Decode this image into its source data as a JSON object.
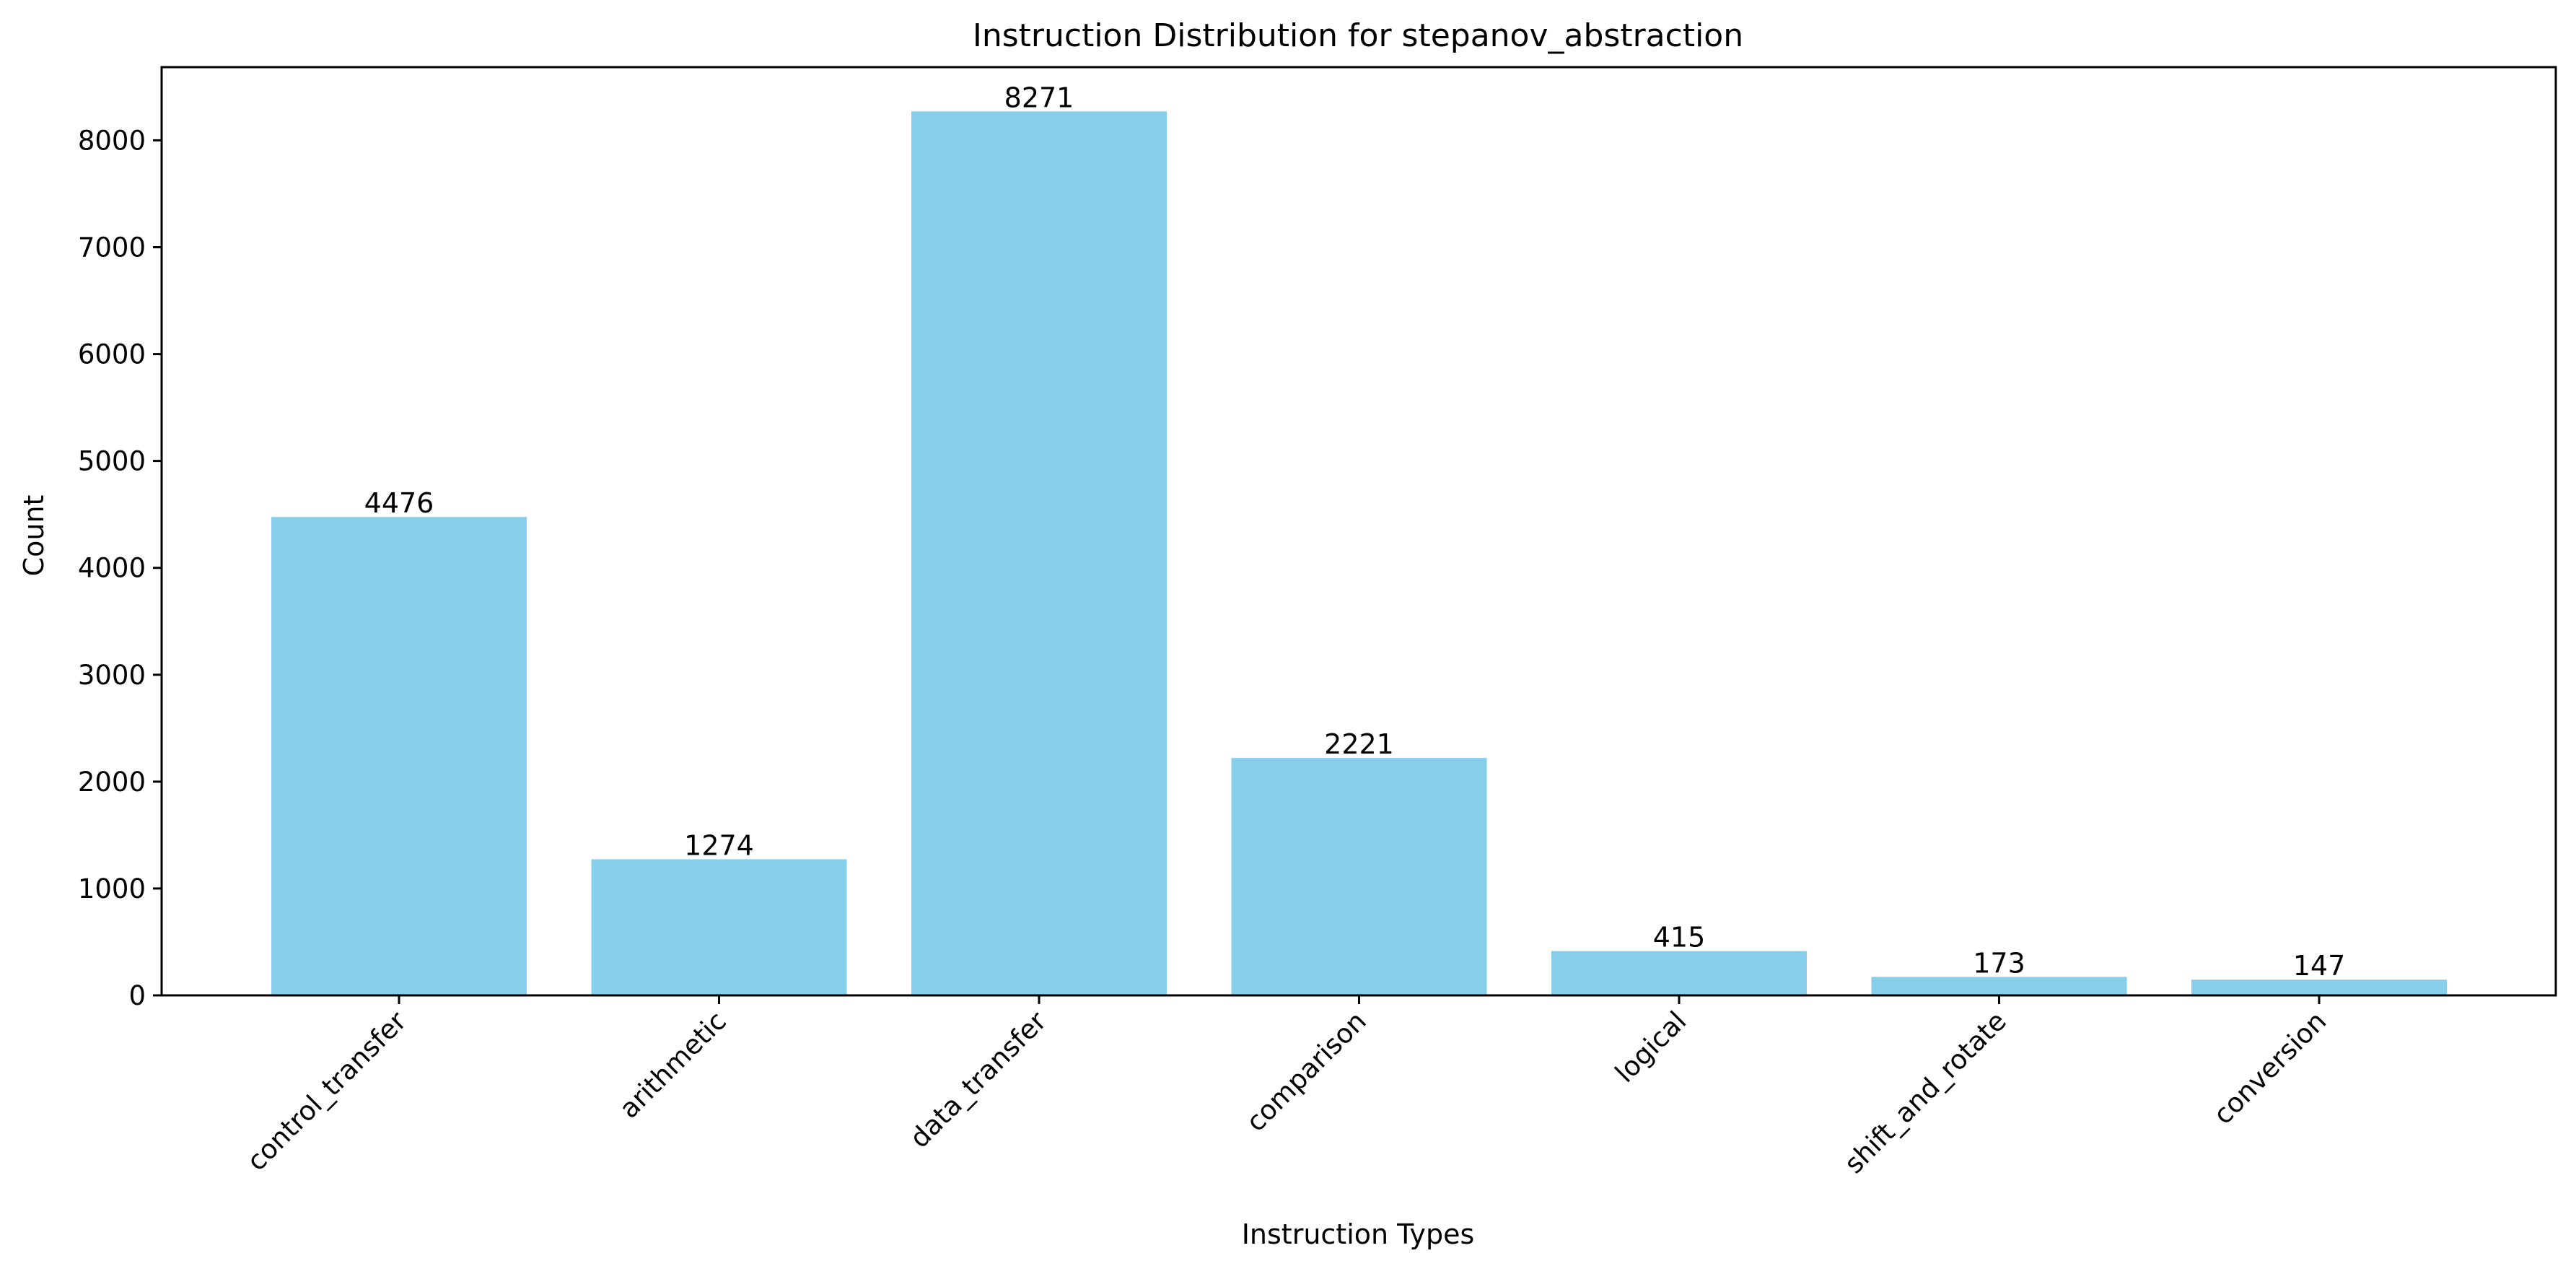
{
  "chart_data": {
    "type": "bar",
    "title": "Instruction Distribution for stepanov_abstraction",
    "xlabel": "Instruction Types",
    "ylabel": "Count",
    "categories": [
      "control_transfer",
      "arithmetic",
      "data_transfer",
      "comparison",
      "logical",
      "shift_and_rotate",
      "conversion"
    ],
    "values": [
      4476,
      1274,
      8271,
      2221,
      415,
      173,
      147
    ],
    "data_labels": [
      "4476",
      "1274",
      "8271",
      "2221",
      "415",
      "173",
      "147"
    ],
    "ylim": [
      0,
      8685
    ],
    "yticks": [
      0,
      1000,
      2000,
      3000,
      4000,
      5000,
      6000,
      7000,
      8000
    ],
    "ytick_labels": [
      "0",
      "1000",
      "2000",
      "3000",
      "4000",
      "5000",
      "6000",
      "7000",
      "8000"
    ],
    "grid": false,
    "legend": "none",
    "colors": {
      "bar": "#87ceeb",
      "axis": "#000000",
      "text": "#000000",
      "background": "#ffffff"
    }
  }
}
